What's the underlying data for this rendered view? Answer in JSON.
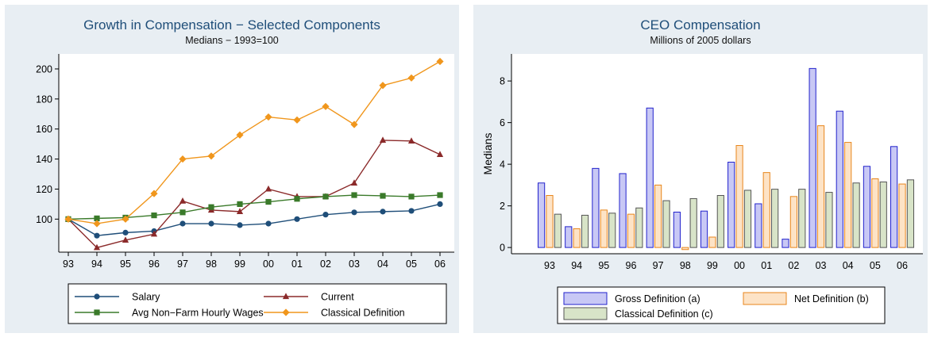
{
  "chart_data": [
    {
      "type": "line",
      "title": "Growth in Compensation − Selected Components",
      "subtitle": "Medians − 1993=100",
      "xlabel": "",
      "ylabel": "",
      "categories": [
        "93",
        "94",
        "95",
        "96",
        "97",
        "98",
        "99",
        "00",
        "01",
        "02",
        "03",
        "04",
        "05",
        "06"
      ],
      "ylim": [
        78,
        210
      ],
      "yticks": [
        100,
        120,
        140,
        160,
        180,
        200
      ],
      "grid": false,
      "legend_position": "bottom",
      "series": [
        {
          "name": "Salary",
          "color": "#1f4e79",
          "marker": "circle",
          "values": [
            100,
            89,
            91,
            92,
            97,
            97,
            96,
            97,
            100,
            103,
            104.5,
            105,
            105.5,
            110
          ]
        },
        {
          "name": "Current",
          "color": "#8b2a2a",
          "marker": "triangle",
          "values": [
            100,
            81,
            86,
            90,
            112,
            106,
            105,
            120,
            115,
            115,
            124,
            152.5,
            152,
            143
          ]
        },
        {
          "name": "Avg Non−Farm Hourly Wages",
          "color": "#3a7a2a",
          "marker": "square",
          "values": [
            100,
            100.5,
            101,
            102.5,
            104.5,
            108,
            110,
            111.5,
            113.5,
            115,
            116,
            115.5,
            115,
            116
          ]
        },
        {
          "name": "Classical Definition",
          "color": "#f0961c",
          "marker": "diamond",
          "values": [
            100,
            97,
            100,
            117,
            140,
            142,
            156,
            168,
            166,
            175,
            163,
            189,
            194,
            205
          ]
        }
      ]
    },
    {
      "type": "bar",
      "title": "CEO Compensation",
      "subtitle": "Millions of 2005 dollars",
      "xlabel": "",
      "ylabel": "Medians",
      "categories": [
        "93",
        "94",
        "95",
        "96",
        "97",
        "98",
        "99",
        "00",
        "01",
        "02",
        "03",
        "04",
        "05",
        "06"
      ],
      "ylim": [
        -0.3,
        9.3
      ],
      "yticks": [
        0,
        2,
        4,
        6,
        8
      ],
      "grid": false,
      "legend_position": "bottom",
      "series": [
        {
          "name": "Gross Definition (a)",
          "color": "#c8c8f5",
          "stroke": "#2222cc",
          "values": [
            3.1,
            1.0,
            3.8,
            3.55,
            6.7,
            1.7,
            1.75,
            4.1,
            2.1,
            0.4,
            8.6,
            6.55,
            3.9,
            4.85
          ]
        },
        {
          "name": "Net Definition (b)",
          "color": "#fde3c6",
          "stroke": "#e8861c",
          "values": [
            2.5,
            0.9,
            1.8,
            1.6,
            3.0,
            -0.1,
            0.5,
            4.9,
            3.6,
            2.45,
            5.85,
            5.05,
            3.3,
            3.05
          ]
        },
        {
          "name": "Classical Definition (c)",
          "color": "#d8e4c8",
          "stroke": "#555555",
          "values": [
            1.6,
            1.55,
            1.65,
            1.9,
            2.25,
            2.35,
            2.5,
            2.75,
            2.8,
            2.8,
            2.65,
            3.1,
            3.15,
            3.25
          ]
        }
      ]
    }
  ]
}
